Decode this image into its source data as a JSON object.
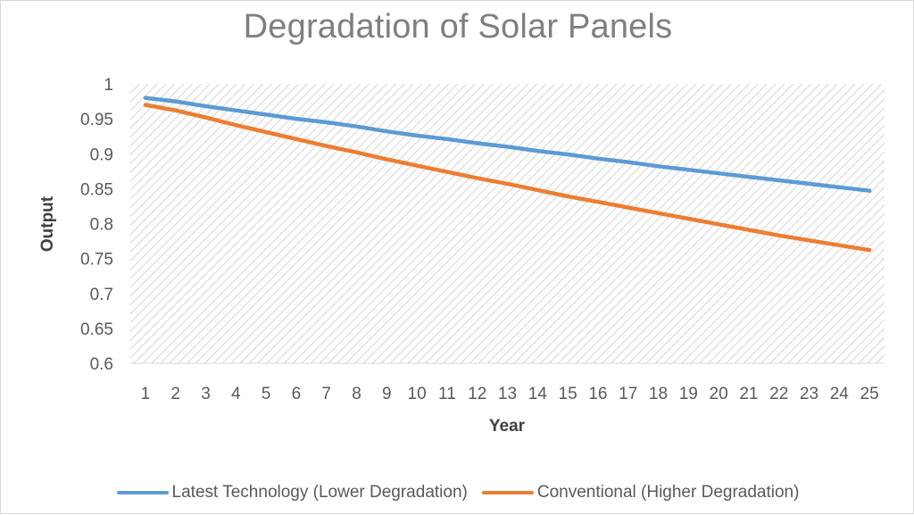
{
  "chart_data": {
    "type": "line",
    "title": "Degradation of Solar Panels",
    "xlabel": "Year",
    "ylabel": "Output",
    "x": [
      1,
      2,
      3,
      4,
      5,
      6,
      7,
      8,
      9,
      10,
      11,
      12,
      13,
      14,
      15,
      16,
      17,
      18,
      19,
      20,
      21,
      22,
      23,
      24,
      25
    ],
    "ylim": [
      0.6,
      1
    ],
    "yticks": [
      "0.6",
      "0.65",
      "0.7",
      "0.75",
      "0.8",
      "0.85",
      "0.9",
      "0.95",
      "1"
    ],
    "grid": false,
    "legend_position": "bottom",
    "plot_background": "diagonal hatch",
    "series": [
      {
        "name": "Latest Technology (Lower Degradation)",
        "color": "#5b9bd5",
        "values": [
          0.98,
          0.975,
          0.968,
          0.962,
          0.956,
          0.95,
          0.945,
          0.939,
          0.932,
          0.926,
          0.921,
          0.915,
          0.91,
          0.904,
          0.899,
          0.893,
          0.888,
          0.882,
          0.877,
          0.872,
          0.867,
          0.862,
          0.857,
          0.852,
          0.847
        ]
      },
      {
        "name": "Conventional (Higher Degradation)",
        "color": "#ed7d31",
        "values": [
          0.97,
          0.962,
          0.952,
          0.941,
          0.931,
          0.921,
          0.911,
          0.902,
          0.892,
          0.883,
          0.874,
          0.865,
          0.857,
          0.848,
          0.839,
          0.831,
          0.823,
          0.815,
          0.807,
          0.799,
          0.791,
          0.783,
          0.776,
          0.769,
          0.762
        ]
      }
    ]
  }
}
